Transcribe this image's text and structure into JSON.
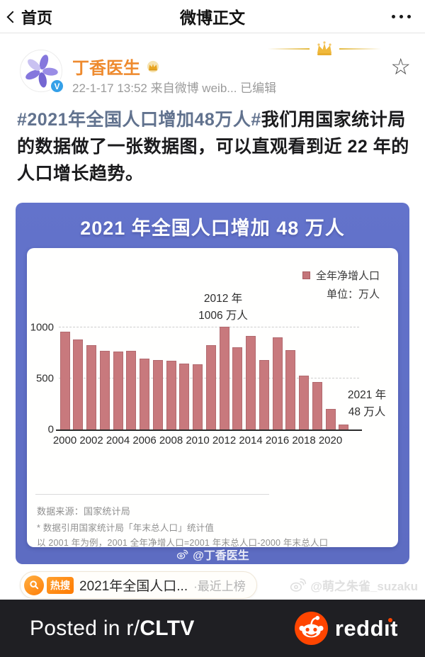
{
  "nav": {
    "back_label": "首页",
    "title": "微博正文"
  },
  "post": {
    "author": "丁香医生",
    "meta": "22-1-17 13:52 来自微博 weib... 已编辑",
    "hashtag": "#2021年全国人口增加48万人#",
    "body": "我们用国家统计局的数据做了一张数据图，可以直观看到近 22 年的人口增长趋势。"
  },
  "chart_card": {
    "title": "2021 年全国人口增加 48 万人",
    "legend_label": "全年净增人口",
    "unit_label": "单位：万人",
    "source_line1": "数据来源：国家统计局",
    "source_line2": "* 数据引用国家统计局「年末总人口」统计值",
    "source_line3": "以 2001 年为例，2001 全年净增人口=2001 年末总人口-2000 年末总人口",
    "watermark": "@丁香医生"
  },
  "chart_data": {
    "type": "bar",
    "title": "2021 年全国人口增加 48 万人",
    "ylabel": "万人",
    "legend": [
      "全年净增人口"
    ],
    "legend_position": "top-right",
    "grid": "dashed horizontal at 500 and 1000",
    "ylim": [
      0,
      1050
    ],
    "yticks": [
      0,
      500,
      1000
    ],
    "categories": [
      2000,
      2001,
      2002,
      2003,
      2004,
      2005,
      2006,
      2007,
      2008,
      2009,
      2010,
      2011,
      2012,
      2013,
      2014,
      2015,
      2016,
      2017,
      2018,
      2019,
      2020,
      2021
    ],
    "values": [
      957,
      884,
      826,
      774,
      761,
      768,
      692,
      681,
      673,
      648,
      641,
      825,
      1006,
      804,
      920,
      680,
      906,
      779,
      530,
      467,
      204,
      48
    ],
    "x_tick_labels": [
      "2000",
      "2002",
      "2004",
      "2006",
      "2008",
      "2010",
      "2012",
      "2014",
      "2016",
      "2018",
      "2020"
    ],
    "bar_color": "#c8797d",
    "annotations": [
      {
        "x": 2012,
        "lines": [
          "2012 年",
          "1006 万人"
        ]
      },
      {
        "x": 2021,
        "lines": [
          "2021 年",
          "48 万人"
        ]
      }
    ]
  },
  "hot_search": {
    "badge": "热搜",
    "text": "2021年全国人口...",
    "suffix": "·最近上榜"
  },
  "watermark_user": "@萌之朱雀_suzaku",
  "footer": {
    "posted_prefix": "Posted in r/",
    "subreddit": "CLTV",
    "brand_prefix": "redd",
    "brand_suffix": "t"
  },
  "colors": {
    "card_blue": "#6170c8",
    "bar": "#c8797d",
    "reddit_orange": "#ff4500",
    "author_orange": "#ee8a2e",
    "hashtag_blue": "#61728e"
  }
}
